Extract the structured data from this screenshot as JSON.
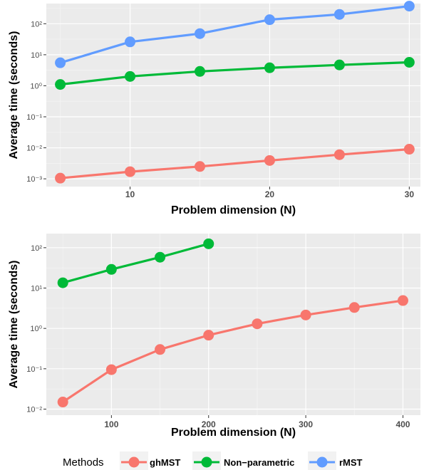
{
  "colors": {
    "ghMST": "#F8766D",
    "Non-parametric": "#00BA38",
    "rMST": "#619CFF",
    "panel_bg": "#EBEBEB",
    "grid": "#FFFFFF"
  },
  "legend": {
    "title": "Methods",
    "position": "bottom",
    "entries": [
      "ghMST",
      "Non−parametric",
      "rMST"
    ]
  },
  "chart_data": [
    {
      "type": "line",
      "xlabel": "Problem dimension (N)",
      "ylabel": "Average time (seconds)",
      "yscale": "log10",
      "grid": true,
      "xlim": [
        4,
        30.8
      ],
      "ylim_log10": [
        -3.25,
        2.65
      ],
      "xticks": [
        10,
        20,
        30
      ],
      "yticks_exp": [
        -3,
        -2,
        -1,
        0,
        1,
        2
      ],
      "x": [
        5,
        10,
        15,
        20,
        25,
        30
      ],
      "series": [
        {
          "name": "ghMST",
          "values": [
            0.00105,
            0.0017,
            0.0025,
            0.0039,
            0.006,
            0.009
          ]
        },
        {
          "name": "Non−parametric",
          "values": [
            1.1,
            2.0,
            2.9,
            3.8,
            4.7,
            5.7
          ]
        },
        {
          "name": "rMST",
          "values": [
            5.5,
            26,
            48,
            135,
            200,
            370
          ]
        }
      ]
    },
    {
      "type": "line",
      "xlabel": "Problem dimension (N)",
      "ylabel": "Average time (seconds)",
      "yscale": "log10",
      "grid": true,
      "xlim": [
        33,
        418
      ],
      "ylim_log10": [
        -2.15,
        2.35
      ],
      "xticks": [
        100,
        200,
        300,
        400
      ],
      "yticks_exp": [
        -2,
        -1,
        0,
        1,
        2
      ],
      "series": [
        {
          "name": "ghMST",
          "x": [
            50,
            100,
            150,
            200,
            250,
            300,
            350,
            400
          ],
          "values": [
            0.015,
            0.095,
            0.3,
            0.68,
            1.3,
            2.15,
            3.3,
            4.9
          ]
        },
        {
          "name": "Non−parametric",
          "x": [
            50,
            100,
            150,
            200
          ],
          "values": [
            13.5,
            29,
            58,
            125
          ]
        }
      ]
    }
  ]
}
